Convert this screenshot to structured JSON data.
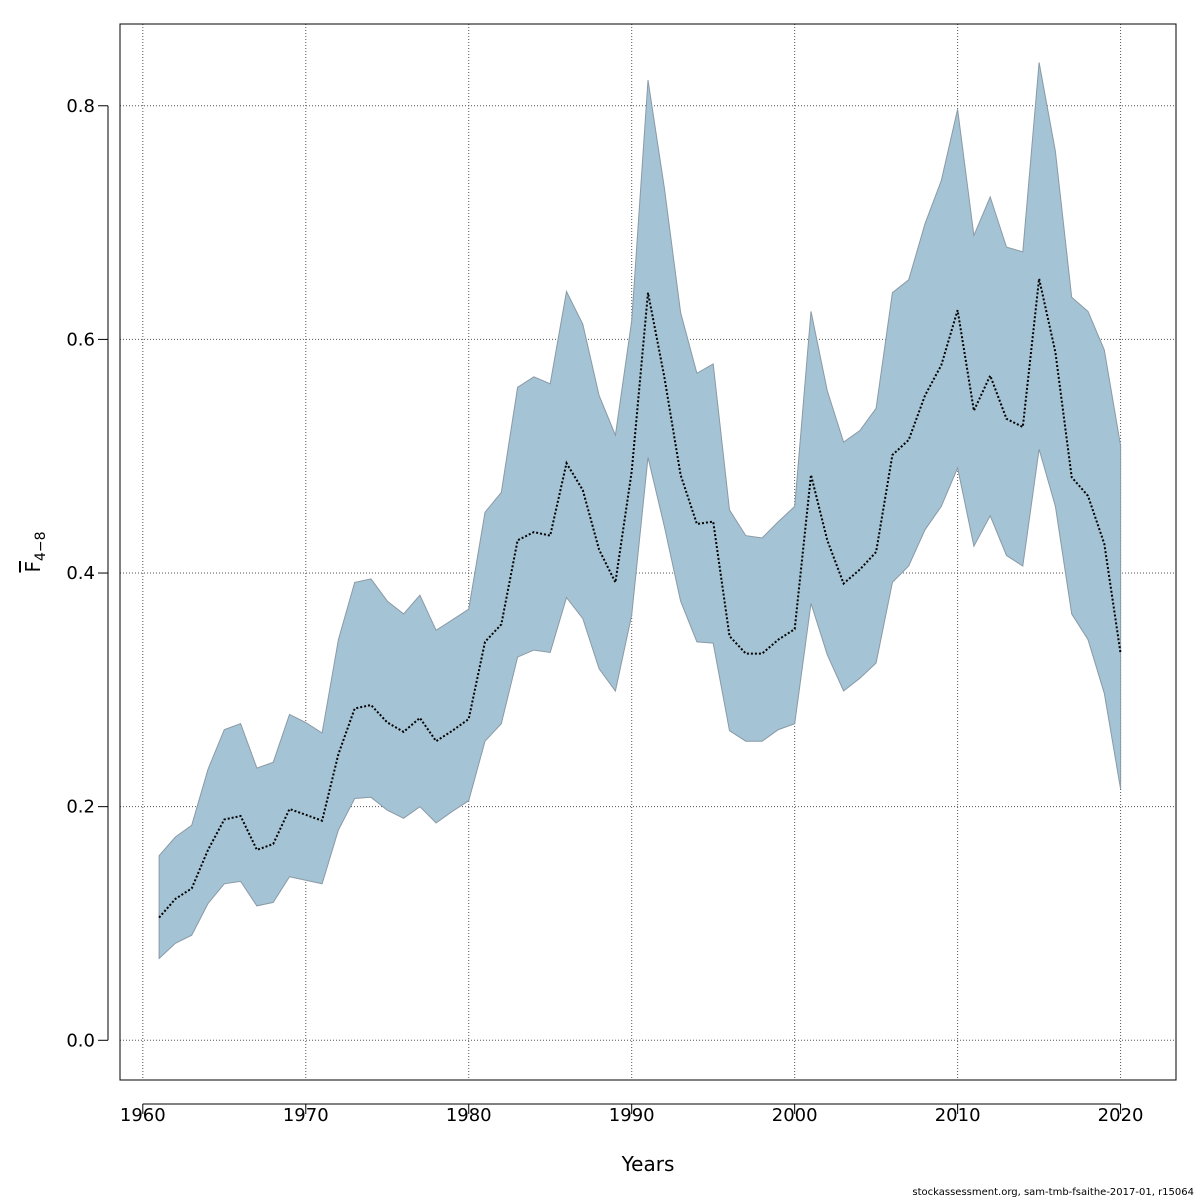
{
  "chart_data": {
    "type": "line",
    "xlabel": "Years",
    "ylabel_main": "F",
    "ylabel_sub": "4−8",
    "xlim": [
      1958.6,
      2023.4
    ],
    "ylim": [
      -0.034,
      0.87
    ],
    "xticks": [
      1960,
      1970,
      1980,
      1990,
      2000,
      2010,
      2020
    ],
    "yticks": [
      0.0,
      0.2,
      0.4,
      0.6,
      0.8
    ],
    "ytick_labels": [
      "0.0",
      "0.2",
      "0.4",
      "0.6",
      "0.8"
    ],
    "grid": true,
    "colors": {
      "band": "#a4c3d4",
      "band_edge": "#8a9aa6",
      "line": "#000000"
    },
    "x": [
      1961,
      1962,
      1963,
      1964,
      1965,
      1966,
      1967,
      1968,
      1969,
      1970,
      1971,
      1972,
      1973,
      1974,
      1975,
      1976,
      1977,
      1978,
      1979,
      1980,
      1981,
      1982,
      1983,
      1984,
      1985,
      1986,
      1987,
      1988,
      1989,
      1990,
      1991,
      1992,
      1993,
      1994,
      1995,
      1996,
      1997,
      1998,
      1999,
      2000,
      2001,
      2002,
      2003,
      2004,
      2005,
      2006,
      2007,
      2008,
      2009,
      2010,
      2011,
      2012,
      2013,
      2014,
      2015,
      2016,
      2017,
      2018,
      2019,
      2020
    ],
    "series": [
      {
        "values": [
          0.105,
          0.121,
          0.13,
          0.163,
          0.189,
          0.192,
          0.163,
          0.168,
          0.198,
          0.193,
          0.188,
          0.245,
          0.284,
          0.287,
          0.272,
          0.264,
          0.276,
          0.256,
          0.265,
          0.275,
          0.341,
          0.356,
          0.428,
          0.435,
          0.432,
          0.494,
          0.471,
          0.42,
          0.392,
          0.487,
          0.64,
          0.568,
          0.484,
          0.442,
          0.444,
          0.346,
          0.331,
          0.331,
          0.343,
          0.352,
          0.484,
          0.428,
          0.391,
          0.403,
          0.418,
          0.501,
          0.514,
          0.552,
          0.578,
          0.625,
          0.539,
          0.569,
          0.532,
          0.525,
          0.652,
          0.589,
          0.482,
          0.466,
          0.425,
          0.331
        ],
        "lower": [
          0.07,
          0.083,
          0.09,
          0.117,
          0.134,
          0.136,
          0.115,
          0.118,
          0.14,
          0.137,
          0.134,
          0.18,
          0.207,
          0.208,
          0.197,
          0.19,
          0.2,
          0.186,
          0.196,
          0.205,
          0.256,
          0.271,
          0.328,
          0.334,
          0.332,
          0.379,
          0.361,
          0.318,
          0.299,
          0.364,
          0.499,
          0.44,
          0.376,
          0.341,
          0.34,
          0.265,
          0.256,
          0.256,
          0.266,
          0.271,
          0.374,
          0.33,
          0.299,
          0.31,
          0.323,
          0.392,
          0.406,
          0.437,
          0.457,
          0.49,
          0.423,
          0.449,
          0.415,
          0.406,
          0.506,
          0.457,
          0.365,
          0.343,
          0.297,
          0.215
        ],
        "upper": [
          0.158,
          0.174,
          0.184,
          0.232,
          0.266,
          0.271,
          0.233,
          0.238,
          0.279,
          0.272,
          0.263,
          0.343,
          0.392,
          0.395,
          0.376,
          0.365,
          0.381,
          0.351,
          0.36,
          0.369,
          0.452,
          0.469,
          0.559,
          0.568,
          0.562,
          0.641,
          0.613,
          0.552,
          0.518,
          0.616,
          0.822,
          0.73,
          0.623,
          0.571,
          0.579,
          0.454,
          0.432,
          0.43,
          0.444,
          0.457,
          0.624,
          0.556,
          0.512,
          0.522,
          0.541,
          0.64,
          0.651,
          0.699,
          0.736,
          0.797,
          0.689,
          0.722,
          0.679,
          0.675,
          0.837,
          0.761,
          0.636,
          0.624,
          0.591,
          0.509
        ]
      }
    ]
  },
  "footer": "stockassessment.org, sam-tmb-fsaithe-2017-01, r15064"
}
